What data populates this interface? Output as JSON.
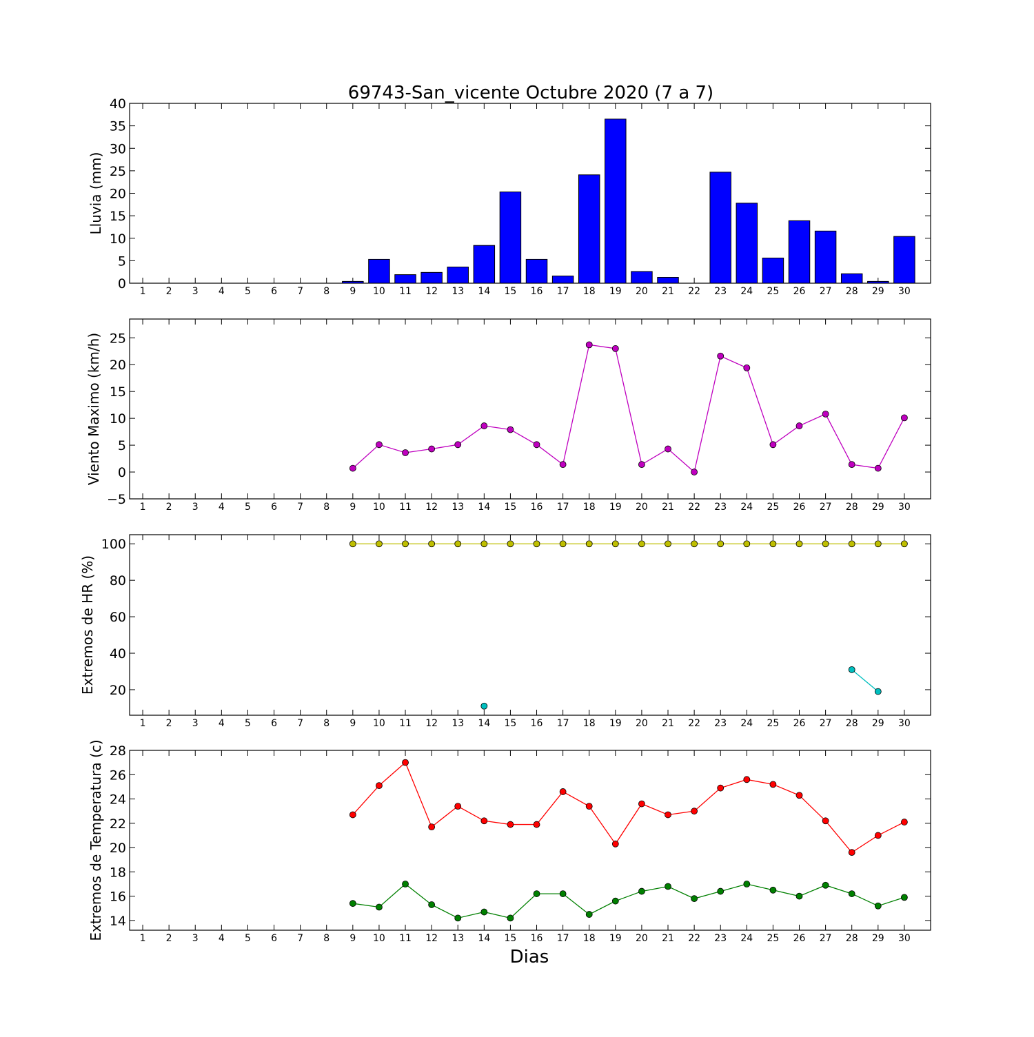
{
  "title": "69743-San_vicente Octubre 2020  (7 a 7)",
  "xlabel": "Dias",
  "colors": {
    "lluvia": "#0000ff",
    "viento": "#bf00bf",
    "hr_max": "#bfbf00",
    "hr_min": "#00bfbf",
    "temp_max": "#ff0000",
    "temp_min": "#008000"
  },
  "chart_data": [
    {
      "type": "bar",
      "ylabel": "Lluvia (mm)",
      "ylim": [
        0,
        40
      ],
      "yticks": [
        0,
        5,
        10,
        15,
        20,
        25,
        30,
        35,
        40
      ],
      "categories": [
        1,
        2,
        3,
        4,
        5,
        6,
        7,
        8,
        9,
        10,
        11,
        12,
        13,
        14,
        15,
        16,
        17,
        18,
        19,
        20,
        21,
        22,
        23,
        24,
        25,
        26,
        27,
        28,
        29,
        30
      ],
      "values": [
        0,
        0,
        0,
        0,
        0,
        0,
        0,
        0,
        0.4,
        5.3,
        1.9,
        2.4,
        3.6,
        8.4,
        20.3,
        5.3,
        1.6,
        24.1,
        36.5,
        2.6,
        1.3,
        0,
        24.7,
        17.8,
        5.6,
        13.9,
        11.6,
        2.1,
        0.4,
        10.4
      ]
    },
    {
      "type": "line",
      "ylabel": "Viento Maximo (km/h)",
      "ylim": [
        -5,
        28.5
      ],
      "yticks": [
        -5,
        0,
        5,
        10,
        15,
        20,
        25
      ],
      "x": [
        1,
        2,
        3,
        4,
        5,
        6,
        7,
        8,
        9,
        10,
        11,
        12,
        13,
        14,
        15,
        16,
        17,
        18,
        19,
        20,
        21,
        22,
        23,
        24,
        25,
        26,
        27,
        28,
        29,
        30
      ],
      "series": [
        {
          "key": "viento",
          "values": [
            null,
            null,
            null,
            null,
            null,
            null,
            null,
            null,
            0.7,
            5.1,
            3.6,
            4.3,
            5.1,
            8.6,
            7.9,
            5.1,
            1.4,
            23.7,
            23.0,
            1.4,
            4.3,
            0.0,
            21.6,
            19.4,
            5.1,
            8.6,
            10.8,
            1.4,
            0.7,
            10.1
          ]
        }
      ]
    },
    {
      "type": "line",
      "ylabel": "Extremos de HR (%)",
      "ylim": [
        6,
        105
      ],
      "yticks": [
        20,
        40,
        60,
        80,
        100
      ],
      "x": [
        1,
        2,
        3,
        4,
        5,
        6,
        7,
        8,
        9,
        10,
        11,
        12,
        13,
        14,
        15,
        16,
        17,
        18,
        19,
        20,
        21,
        22,
        23,
        24,
        25,
        26,
        27,
        28,
        29,
        30
      ],
      "series": [
        {
          "key": "hr_max",
          "values": [
            null,
            null,
            null,
            null,
            null,
            null,
            null,
            null,
            100,
            100,
            100,
            100,
            100,
            100,
            100,
            100,
            100,
            100,
            100,
            100,
            100,
            100,
            100,
            100,
            100,
            100,
            100,
            100,
            100,
            100
          ]
        },
        {
          "key": "hr_min",
          "values": [
            null,
            null,
            null,
            null,
            null,
            null,
            null,
            null,
            null,
            null,
            null,
            null,
            null,
            11,
            null,
            null,
            null,
            null,
            null,
            null,
            null,
            null,
            null,
            null,
            null,
            null,
            null,
            31,
            19,
            null
          ]
        }
      ]
    },
    {
      "type": "line",
      "ylabel": "Extremos de Temperatura (c)",
      "ylim": [
        13.2,
        28
      ],
      "yticks": [
        14,
        16,
        18,
        20,
        22,
        24,
        26,
        28
      ],
      "x": [
        1,
        2,
        3,
        4,
        5,
        6,
        7,
        8,
        9,
        10,
        11,
        12,
        13,
        14,
        15,
        16,
        17,
        18,
        19,
        20,
        21,
        22,
        23,
        24,
        25,
        26,
        27,
        28,
        29,
        30
      ],
      "series": [
        {
          "key": "temp_max",
          "values": [
            null,
            null,
            null,
            null,
            null,
            null,
            null,
            null,
            22.7,
            25.1,
            27.0,
            21.7,
            23.4,
            22.2,
            21.9,
            21.9,
            24.6,
            23.4,
            20.3,
            23.6,
            22.7,
            23.0,
            24.9,
            25.6,
            25.2,
            24.3,
            22.2,
            19.6,
            21.0,
            22.1
          ]
        },
        {
          "key": "temp_min",
          "values": [
            null,
            null,
            null,
            null,
            null,
            null,
            null,
            null,
            15.4,
            15.1,
            17.0,
            15.3,
            14.2,
            14.7,
            14.2,
            16.2,
            16.2,
            14.5,
            15.6,
            16.4,
            16.8,
            15.8,
            16.4,
            17.0,
            16.5,
            16.0,
            16.9,
            16.2,
            15.2,
            15.9
          ]
        }
      ]
    }
  ]
}
